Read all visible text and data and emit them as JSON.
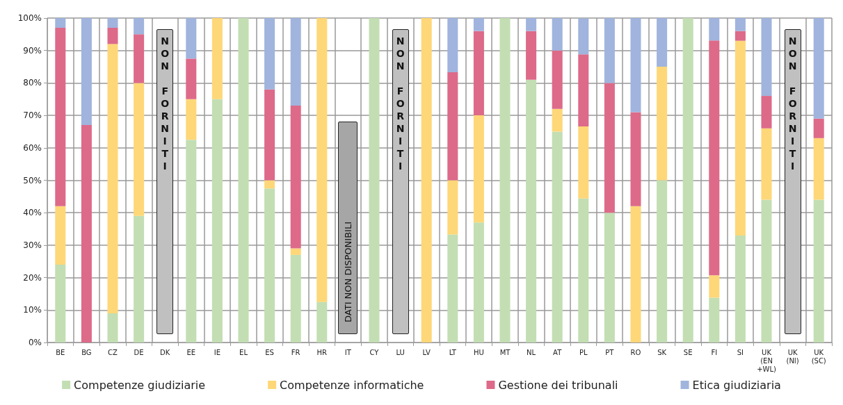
{
  "chart_data": {
    "type": "bar",
    "stacked": true,
    "categories": [
      "BE",
      "BG",
      "CZ",
      "DE",
      "DK",
      "EE",
      "IE",
      "EL",
      "ES",
      "FR",
      "HR",
      "IT",
      "CY",
      "LU",
      "LV",
      "LT",
      "HU",
      "MT",
      "NL",
      "AT",
      "PL",
      "PT",
      "RO",
      "SK",
      "SE",
      "FI",
      "SI",
      "UK\n(EN\n+WL)",
      "UK\n(NI)",
      "UK\n(SC)"
    ],
    "series": [
      {
        "name": "Competenze giudiziarie",
        "color": "#c3deb3",
        "values": [
          24,
          0,
          9,
          39,
          null,
          62.5,
          75,
          100,
          47.5,
          27,
          12.5,
          null,
          100,
          null,
          0,
          33.3,
          37,
          100,
          81,
          65,
          44.4,
          40,
          0,
          50,
          100,
          13.8,
          33,
          44,
          null,
          44
        ]
      },
      {
        "name": "Competenze informatiche",
        "color": "#fed778",
        "values": [
          18,
          0,
          83,
          41,
          null,
          12.5,
          25,
          0,
          2.5,
          2,
          87.5,
          null,
          0,
          null,
          100,
          16.7,
          33,
          0,
          0,
          7,
          22.2,
          0,
          42,
          35,
          0,
          6.9,
          60,
          22,
          null,
          19
        ]
      },
      {
        "name": "Gestione dei tribunali",
        "color": "#dd6a89",
        "values": [
          55,
          67,
          5,
          15,
          null,
          12.5,
          0,
          0,
          28,
          44,
          0,
          null,
          0,
          null,
          0,
          33.3,
          26,
          0,
          15,
          18,
          22.2,
          40,
          29,
          0,
          0,
          72.4,
          3,
          10,
          null,
          6
        ]
      },
      {
        "name": "Etica giudiziaria",
        "color": "#a0b4dd",
        "values": [
          3,
          33,
          3,
          5,
          null,
          12.5,
          0,
          0,
          22,
          27,
          0,
          null,
          0,
          null,
          0,
          16.7,
          4,
          0,
          4,
          10,
          11.1,
          20,
          29,
          15,
          0,
          6.9,
          4,
          24,
          null,
          31
        ]
      }
    ],
    "ylim": [
      0,
      100
    ],
    "yticks": [
      {
        "value": 0,
        "label": "0%"
      },
      {
        "value": 10,
        "label": "10%"
      },
      {
        "value": 20,
        "label": "20%"
      },
      {
        "value": 30,
        "label": "30%"
      },
      {
        "value": 40,
        "label": "40%"
      },
      {
        "value": 50,
        "label": "50%"
      },
      {
        "value": 60,
        "label": "60%"
      },
      {
        "value": 70,
        "label": "70%"
      },
      {
        "value": 80,
        "label": "80%"
      },
      {
        "value": 90,
        "label": "90%"
      },
      {
        "value": 100,
        "label": "100%"
      }
    ],
    "grid": true,
    "legend": "bottom",
    "annotations": [
      "NON FORNITI",
      "DATI NON DISPONIBILI",
      "NON FORNITI",
      "NON FORNITI"
    ]
  }
}
